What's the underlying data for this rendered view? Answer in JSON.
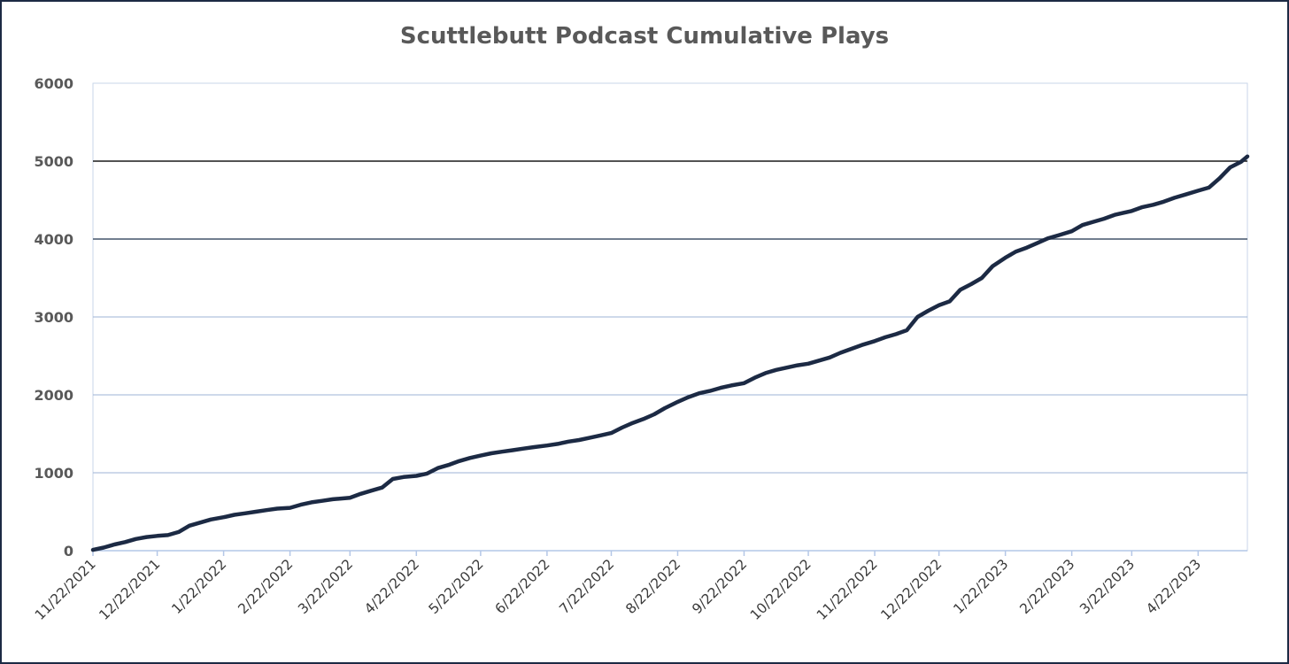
{
  "chart_data": {
    "type": "line",
    "title": "Scuttlebutt Podcast Cumulative Plays",
    "xlabel": "",
    "ylabel": "",
    "ylim": [
      0,
      6000
    ],
    "yticks": [
      "0",
      "1000",
      "2000",
      "3000",
      "4000",
      "5000",
      "6000"
    ],
    "grid": true,
    "legend": "none",
    "line_color": "#1c2a44",
    "xticks": [
      "11/22/2021",
      "12/22/2021",
      "1/22/2022",
      "2/22/2022",
      "3/22/2022",
      "4/22/2022",
      "5/22/2022",
      "6/22/2022",
      "7/22/2022",
      "8/22/2022",
      "9/22/2022",
      "10/22/2022",
      "11/22/2022",
      "12/22/2022",
      "1/22/2023",
      "2/22/2023",
      "3/22/2023",
      "4/22/2023"
    ],
    "x_range": [
      "11/22/2021",
      "5/15/2023"
    ],
    "series": [
      {
        "x": [
          "11/22/2021",
          "11/27/2021",
          "12/2/2021",
          "12/7/2021",
          "12/12/2021",
          "12/17/2021",
          "12/22/2021",
          "12/27/2021",
          "1/1/2022",
          "1/6/2022",
          "1/11/2022",
          "1/16/2022",
          "1/22/2022",
          "1/27/2022",
          "2/1/2022",
          "2/6/2022",
          "2/11/2022",
          "2/16/2022",
          "2/22/2022",
          "2/27/2022",
          "3/4/2022",
          "3/9/2022",
          "3/14/2022",
          "3/22/2022",
          "3/27/2022",
          "4/1/2022",
          "4/6/2022",
          "4/11/2022",
          "4/16/2022",
          "4/22/2022",
          "4/27/2022",
          "5/2/2022",
          "5/7/2022",
          "5/12/2022",
          "5/17/2022",
          "5/22/2022",
          "5/27/2022",
          "6/1/2022",
          "6/6/2022",
          "6/11/2022",
          "6/16/2022",
          "6/22/2022",
          "6/27/2022",
          "7/2/2022",
          "7/7/2022",
          "7/12/2022",
          "7/17/2022",
          "7/22/2022",
          "7/27/2022",
          "8/1/2022",
          "8/6/2022",
          "8/11/2022",
          "8/16/2022",
          "8/22/2022",
          "8/27/2022",
          "9/1/2022",
          "9/6/2022",
          "9/11/2022",
          "9/16/2022",
          "9/22/2022",
          "9/27/2022",
          "10/2/2022",
          "10/7/2022",
          "10/12/2022",
          "10/17/2022",
          "10/22/2022",
          "10/27/2022",
          "11/1/2022",
          "11/6/2022",
          "11/11/2022",
          "11/16/2022",
          "11/22/2022",
          "11/27/2022",
          "12/2/2022",
          "12/7/2022",
          "12/12/2022",
          "12/17/2022",
          "12/22/2022",
          "12/27/2022",
          "1/1/2023",
          "1/6/2023",
          "1/11/2023",
          "1/16/2023",
          "1/22/2023",
          "1/27/2023",
          "2/1/2023",
          "2/6/2023",
          "2/11/2023",
          "2/16/2023",
          "2/22/2023",
          "2/27/2023",
          "3/4/2023",
          "3/9/2023",
          "3/14/2023",
          "3/22/2023",
          "3/27/2023",
          "4/1/2023",
          "4/6/2023",
          "4/11/2023",
          "4/16/2023",
          "4/22/2023",
          "4/27/2023",
          "5/2/2023",
          "5/7/2023",
          "5/12/2023",
          "5/15/2023"
        ],
        "values": [
          10,
          40,
          80,
          110,
          150,
          175,
          190,
          200,
          240,
          320,
          360,
          400,
          430,
          460,
          480,
          500,
          520,
          540,
          550,
          590,
          620,
          640,
          660,
          680,
          730,
          770,
          810,
          920,
          945,
          960,
          990,
          1060,
          1100,
          1150,
          1190,
          1220,
          1250,
          1270,
          1290,
          1310,
          1330,
          1350,
          1370,
          1400,
          1420,
          1450,
          1480,
          1510,
          1580,
          1640,
          1690,
          1750,
          1830,
          1910,
          1970,
          2020,
          2050,
          2090,
          2120,
          2150,
          2220,
          2280,
          2320,
          2350,
          2380,
          2400,
          2440,
          2480,
          2540,
          2590,
          2640,
          2690,
          2740,
          2780,
          2830,
          3000,
          3080,
          3150,
          3200,
          3350,
          3420,
          3500,
          3650,
          3760,
          3840,
          3890,
          3950,
          4010,
          4050,
          4100,
          4180,
          4220,
          4260,
          4310,
          4360,
          4410,
          4440,
          4480,
          4530,
          4570,
          4620,
          4660,
          4780,
          4920,
          4990,
          5060
        ]
      }
    ]
  }
}
